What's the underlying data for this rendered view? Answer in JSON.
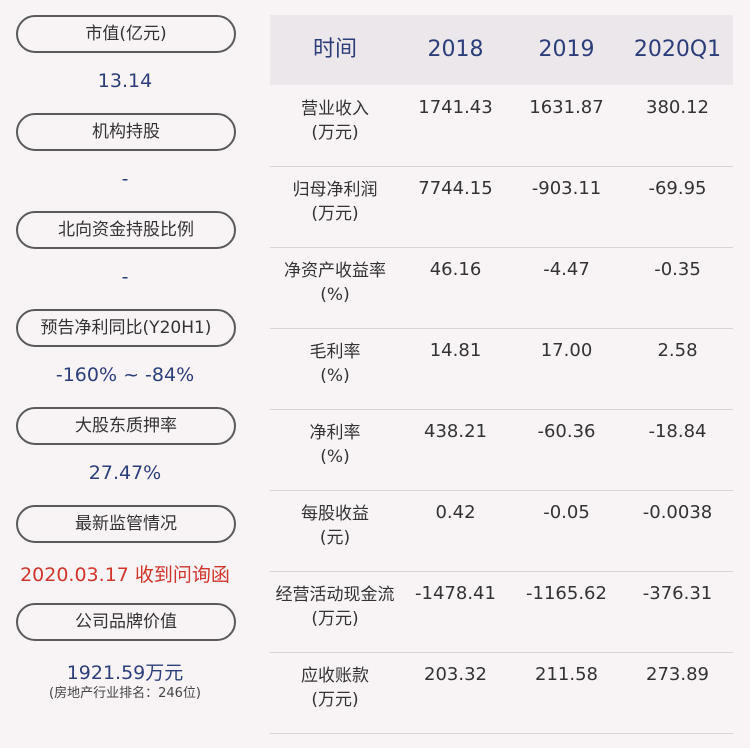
{
  "left_panel": {
    "items": [
      {
        "label": "市值(亿元)",
        "value": "13.14"
      },
      {
        "label": "机构持股",
        "value": "-"
      },
      {
        "label": "北向资金持股比例",
        "value": "-"
      },
      {
        "label": "预告净利同比(Y20H1)",
        "value": "-160% ~ -84%"
      },
      {
        "label": "大股东质押率",
        "value": "27.47%"
      },
      {
        "label": "最新监管情况",
        "value": "2020.03.17 收到问询函"
      },
      {
        "label": "公司品牌价值",
        "value": "1921.59万元",
        "sub": "(房地产行业排名：246位)"
      }
    ]
  },
  "table": {
    "headers": [
      "时间",
      "2018",
      "2019",
      "2020Q1"
    ],
    "rows": [
      {
        "name": "营业收入",
        "unit": "(万元)",
        "values": [
          "1741.43",
          "1631.87",
          "380.12"
        ]
      },
      {
        "name": "归母净利润",
        "unit": "(万元)",
        "values": [
          "7744.15",
          "-903.11",
          "-69.95"
        ]
      },
      {
        "name": "净资产收益率",
        "unit": "(%)",
        "values": [
          "46.16",
          "-4.47",
          "-0.35"
        ]
      },
      {
        "name": "毛利率",
        "unit": "(%)",
        "values": [
          "14.81",
          "17.00",
          "2.58"
        ]
      },
      {
        "name": "净利率",
        "unit": "(%)",
        "values": [
          "438.21",
          "-60.36",
          "-18.84"
        ]
      },
      {
        "name": "每股收益",
        "unit": "(元)",
        "values": [
          "0.42",
          "-0.05",
          "-0.0038"
        ]
      },
      {
        "name": "经营活动现金流",
        "unit": "(万元)",
        "values": [
          "-1478.41",
          "-1165.62",
          "-376.31"
        ]
      },
      {
        "name": "应收账款",
        "unit": "(万元)",
        "values": [
          "203.32",
          "211.58",
          "273.89"
        ]
      }
    ]
  },
  "colors": {
    "value_blue": "#2c3e7a",
    "alert_red": "#d0352b",
    "header_bg": "#ece7ea",
    "page_bg": "#f8f4f5"
  }
}
